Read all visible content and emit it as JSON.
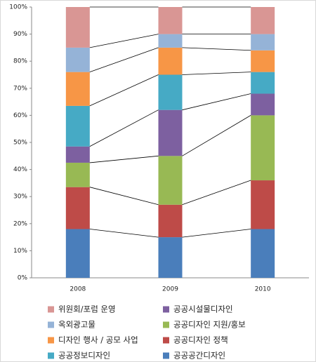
{
  "chart_data": {
    "type": "stacked_bar",
    "categories": [
      "2008",
      "2009",
      "2010"
    ],
    "series": [
      {
        "name": "공공공간디자인",
        "color": "#4a7ebb",
        "values": [
          18,
          15,
          18
        ]
      },
      {
        "name": "공공디자인 정책",
        "color": "#be4b48",
        "values": [
          15.5,
          12,
          18
        ]
      },
      {
        "name": "공공디자인 지원/홍보",
        "color": "#98b954",
        "values": [
          9,
          18,
          24
        ]
      },
      {
        "name": "공공시설물디자인",
        "color": "#7d60a0",
        "values": [
          6,
          17,
          8
        ]
      },
      {
        "name": "공공정보디자인",
        "color": "#46aac5",
        "values": [
          15,
          13,
          8
        ]
      },
      {
        "name": "디자인 행사 / 공모 사업",
        "color": "#f79646",
        "values": [
          12.5,
          10,
          8
        ]
      },
      {
        "name": "옥외광고물",
        "color": "#95b3d7",
        "values": [
          9,
          5,
          6
        ]
      },
      {
        "name": "위원회/포럼 운영",
        "color": "#d99694",
        "values": [
          15,
          10,
          10
        ]
      }
    ],
    "ylim": [
      0,
      100
    ],
    "yticks": [
      {
        "value": 0,
        "label": "0%"
      },
      {
        "value": 10,
        "label": "10%"
      },
      {
        "value": 20,
        "label": "20%"
      },
      {
        "value": 30,
        "label": "30%"
      },
      {
        "value": 40,
        "label": "40%"
      },
      {
        "value": 50,
        "label": "50%"
      },
      {
        "value": 60,
        "label": "60%"
      },
      {
        "value": 70,
        "label": "70%"
      },
      {
        "value": 80,
        "label": "80%"
      },
      {
        "value": 90,
        "label": "90%"
      },
      {
        "value": 100,
        "label": "100%"
      }
    ],
    "connector_lines": true
  }
}
